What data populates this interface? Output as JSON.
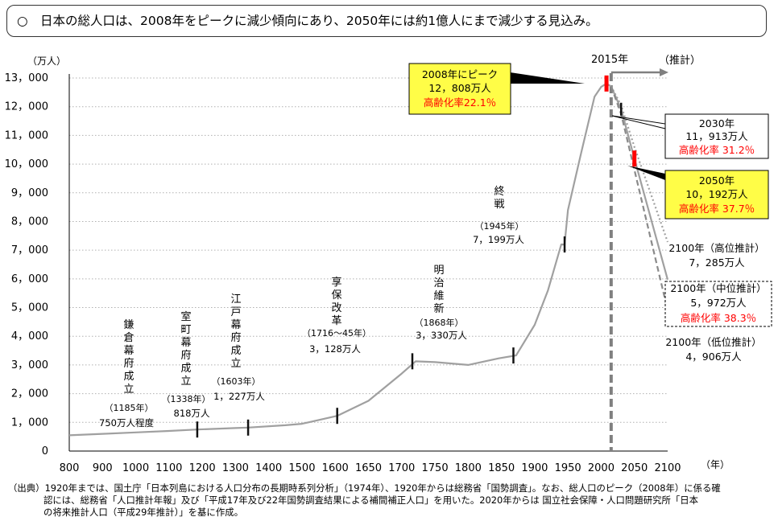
{
  "headline": "○　日本の総人口は、2008年をピークに減少傾向にあり、2050年には約1億人にまで減少する見込み。",
  "chart_data": {
    "type": "line",
    "ylabel": "（万人）",
    "xlabel": "（年）",
    "xlim": [
      800,
      2100
    ],
    "ylim": [
      0,
      13000
    ],
    "xticks": [
      800,
      900,
      1000,
      1100,
      1200,
      1300,
      1400,
      1500,
      1600,
      1650,
      1700,
      1750,
      1800,
      1850,
      1900,
      1950,
      2000,
      2050,
      2100
    ],
    "yticks": [
      0,
      1000,
      2000,
      3000,
      4000,
      5000,
      6000,
      7000,
      8000,
      9000,
      10000,
      11000,
      12000,
      13000
    ],
    "ytick_labels": [
      "0",
      "1，000",
      "2，000",
      "3，000",
      "4，000",
      "5，000",
      "6，000",
      "7，000",
      "8，000",
      "9，000",
      "10，000",
      "11，000",
      "12，000",
      "13，000"
    ],
    "grid": true,
    "boundary": {
      "x": 2015,
      "label": "2015年",
      "arrow_label": "（推計）"
    },
    "series": [
      {
        "style": "solid",
        "x": [
          800,
          900,
          1000,
          1100,
          1185,
          1300,
          1338,
          1450,
          1500,
          1603,
          1650,
          1700,
          1721,
          1750,
          1800,
          1846,
          1872,
          1900,
          1920,
          1940,
          1945,
          1950,
          1970,
          1990,
          2000,
          2008,
          2015
        ],
        "y": [
          550,
          600,
          650,
          700,
          750,
          800,
          818,
          900,
          950,
          1227,
          1750,
          2700,
          3128,
          3100,
          3000,
          3230,
          3330,
          4400,
          5600,
          7200,
          7199,
          8400,
          10400,
          12350,
          12690,
          12808,
          12710
        ]
      },
      {
        "style": "solid",
        "x": [
          2015,
          2030,
          2050,
          2100
        ],
        "y": [
          12710,
          11913,
          10192,
          5972
        ]
      },
      {
        "style": "dotted",
        "x": [
          2015,
          2030,
          2050,
          2100
        ],
        "y": [
          12710,
          12050,
          10600,
          7285
        ]
      },
      {
        "style": "dashed",
        "x": [
          2015,
          2030,
          2050,
          2100
        ],
        "y": [
          12710,
          11750,
          9800,
          4906
        ]
      }
    ],
    "events": [
      {
        "x": 1185,
        "y": 750,
        "lines": [
          "鎌",
          "倉",
          "幕",
          "府",
          "成",
          "立"
        ],
        "year": "（1185年）",
        "value": "750万人程度"
      },
      {
        "x": 1338,
        "y": 818,
        "lines": [
          "室",
          "町",
          "幕",
          "府",
          "成",
          "立"
        ],
        "year": "（1338年）",
        "value": "818万人"
      },
      {
        "x": 1603,
        "y": 1227,
        "lines": [
          "江",
          "戸",
          "幕",
          "府",
          "成",
          "立"
        ],
        "year": "（1603年）",
        "value": "1，227万人"
      },
      {
        "x": 1716,
        "y": 3128,
        "lines": [
          "享",
          "保",
          "改",
          "革"
        ],
        "year": "（1716～45年）",
        "value": "3，128万人"
      },
      {
        "x": 1868,
        "y": 3330,
        "lines": [
          "明",
          "治",
          "維",
          "新"
        ],
        "year": "（1868年）",
        "value": "3，330万人"
      },
      {
        "x": 1945,
        "y": 7199,
        "lines": [
          "終",
          "戦"
        ],
        "year": "（1945年）",
        "value": "7，199万人"
      }
    ],
    "callouts": {
      "peak": {
        "line1": "2008年にピーク",
        "line2": "12，808万人",
        "line3": "高齢化率22.1％"
      },
      "c2030": {
        "line1": "2030年",
        "line2": "11，913万人",
        "line3": "高齢化率 31.2％"
      },
      "c2050": {
        "line1": "2050年",
        "line2": "10，192万人",
        "line3": "高齢化率 37.7％"
      },
      "high": {
        "line1": "2100年（高位推計）",
        "line2": "7，285万人"
      },
      "mid": {
        "line1": "2100年（中位推計）",
        "line2": "5，972万人",
        "line3": "高齢化率 38.3％"
      },
      "low": {
        "line1": "2100年（低位推計）",
        "line2": "4，906万人"
      }
    }
  },
  "source": {
    "line1": "（出典）1920年までは、国土庁「日本列島における人口分布の長期時系列分析」（1974年）、1920年からは総務省「国勢調査」。なお、総人口のピーク（2008年）に係る確",
    "line2": "認には、総務省「人口推計年報」及び「平成17年及び22年国勢調査結果による補間補正人口」を用いた。2020年からは 国立社会保障・人口問題研究所「日本",
    "line3": "の将来推計人口（平成29年推計）」を基に作成。"
  },
  "colors": {
    "line": "#a0a0a0",
    "callout_fill": "#fffd47",
    "red": "#ff0000",
    "grid": "#b0b0b0"
  }
}
